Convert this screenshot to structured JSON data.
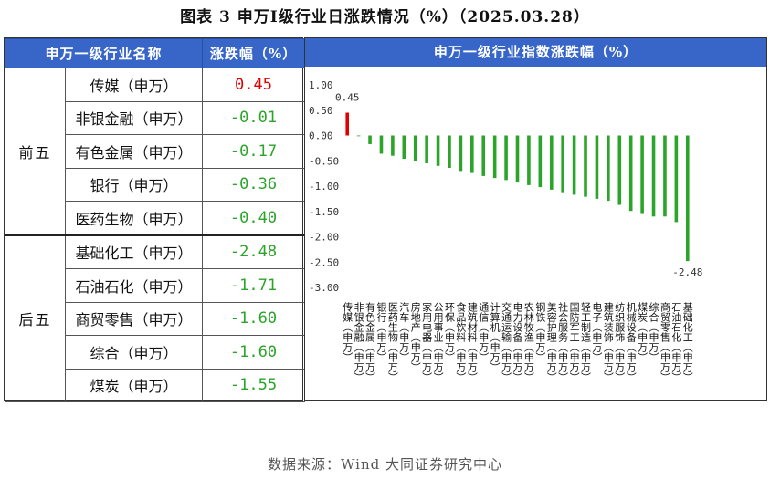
{
  "title": "图表 3   申万Ⅰ级行业日涨跌情况（%）（2025.03.28）",
  "table": {
    "headers": [
      "申万一级行业名称",
      "涨跌幅（%）"
    ],
    "groups": [
      {
        "label": "前五",
        "rows": [
          {
            "name": "传媒（申万）",
            "value": "0.45",
            "color": "#e00000"
          },
          {
            "name": "非银金融（申万）",
            "value": "-0.01",
            "color": "#2aa52a"
          },
          {
            "name": "有色金属（申万）",
            "value": "-0.17",
            "color": "#2aa52a"
          },
          {
            "name": "银行（申万）",
            "value": "-0.36",
            "color": "#2aa52a"
          },
          {
            "name": "医药生物（申万）",
            "value": "-0.40",
            "color": "#2aa52a"
          }
        ]
      },
      {
        "label": "后五",
        "rows": [
          {
            "name": "基础化工（申万）",
            "value": "-2.48",
            "color": "#2aa52a"
          },
          {
            "name": "石油石化（申万）",
            "value": "-1.71",
            "color": "#2aa52a"
          },
          {
            "name": "商贸零售（申万）",
            "value": "-1.60",
            "color": "#2aa52a"
          },
          {
            "name": "综合（申万）",
            "value": "-1.60",
            "color": "#2aa52a"
          },
          {
            "name": "煤炭（申万）",
            "value": "-1.55",
            "color": "#2aa52a"
          }
        ]
      }
    ]
  },
  "chart_data": {
    "type": "bar",
    "title": "申万一级行业指数涨跌幅（%）",
    "ylim": [
      -3.0,
      1.0
    ],
    "yticks": [
      "1.00",
      "0.50",
      "0.00",
      "-0.50",
      "-1.00",
      "-1.50",
      "-2.00",
      "-2.50",
      "-3.00"
    ],
    "grid": false,
    "positive_color": "#e00000",
    "negative_color": "#2aa52a",
    "data_labels": [
      {
        "index": 0,
        "text": "0.45"
      },
      {
        "index": 30,
        "text": "-2.48"
      }
    ],
    "categories": [
      "传媒（申万）",
      "非银金融（申万）",
      "有色金属（申万）",
      "银行（申万）",
      "医药生物（申万）",
      "汽车（申万）",
      "房地产（申万）",
      "家用电器（申万）",
      "公用事业（申万）",
      "环保（申万）",
      "食品饮料（申万）",
      "建筑材料（申万）",
      "通信（申万）",
      "计算机（申万）",
      "交通运输（申万）",
      "电力设备（申万）",
      "农林牧渔（申万）",
      "钢铁（申万）",
      "美容护理（申万）",
      "社会服务（申万）",
      "国防军工（申万）",
      "轻工制造（申万）",
      "电子（申万）",
      "建筑装饰（申万）",
      "纺织服饰（申万）",
      "机械设备（申万）",
      "煤炭（申万）",
      "综合（申万）",
      "商贸零售（申万）",
      "石油石化（申万）",
      "基础化工（申万）"
    ],
    "values": [
      0.45,
      -0.01,
      -0.17,
      -0.36,
      -0.4,
      -0.46,
      -0.51,
      -0.55,
      -0.6,
      -0.64,
      -0.7,
      -0.74,
      -0.8,
      -0.84,
      -0.88,
      -0.93,
      -0.98,
      -1.02,
      -1.07,
      -1.12,
      -1.17,
      -1.21,
      -1.25,
      -1.29,
      -1.37,
      -1.49,
      -1.55,
      -1.6,
      -1.6,
      -1.71,
      -2.48
    ]
  },
  "source": "数据来源：Wind 大同证券研究中心"
}
